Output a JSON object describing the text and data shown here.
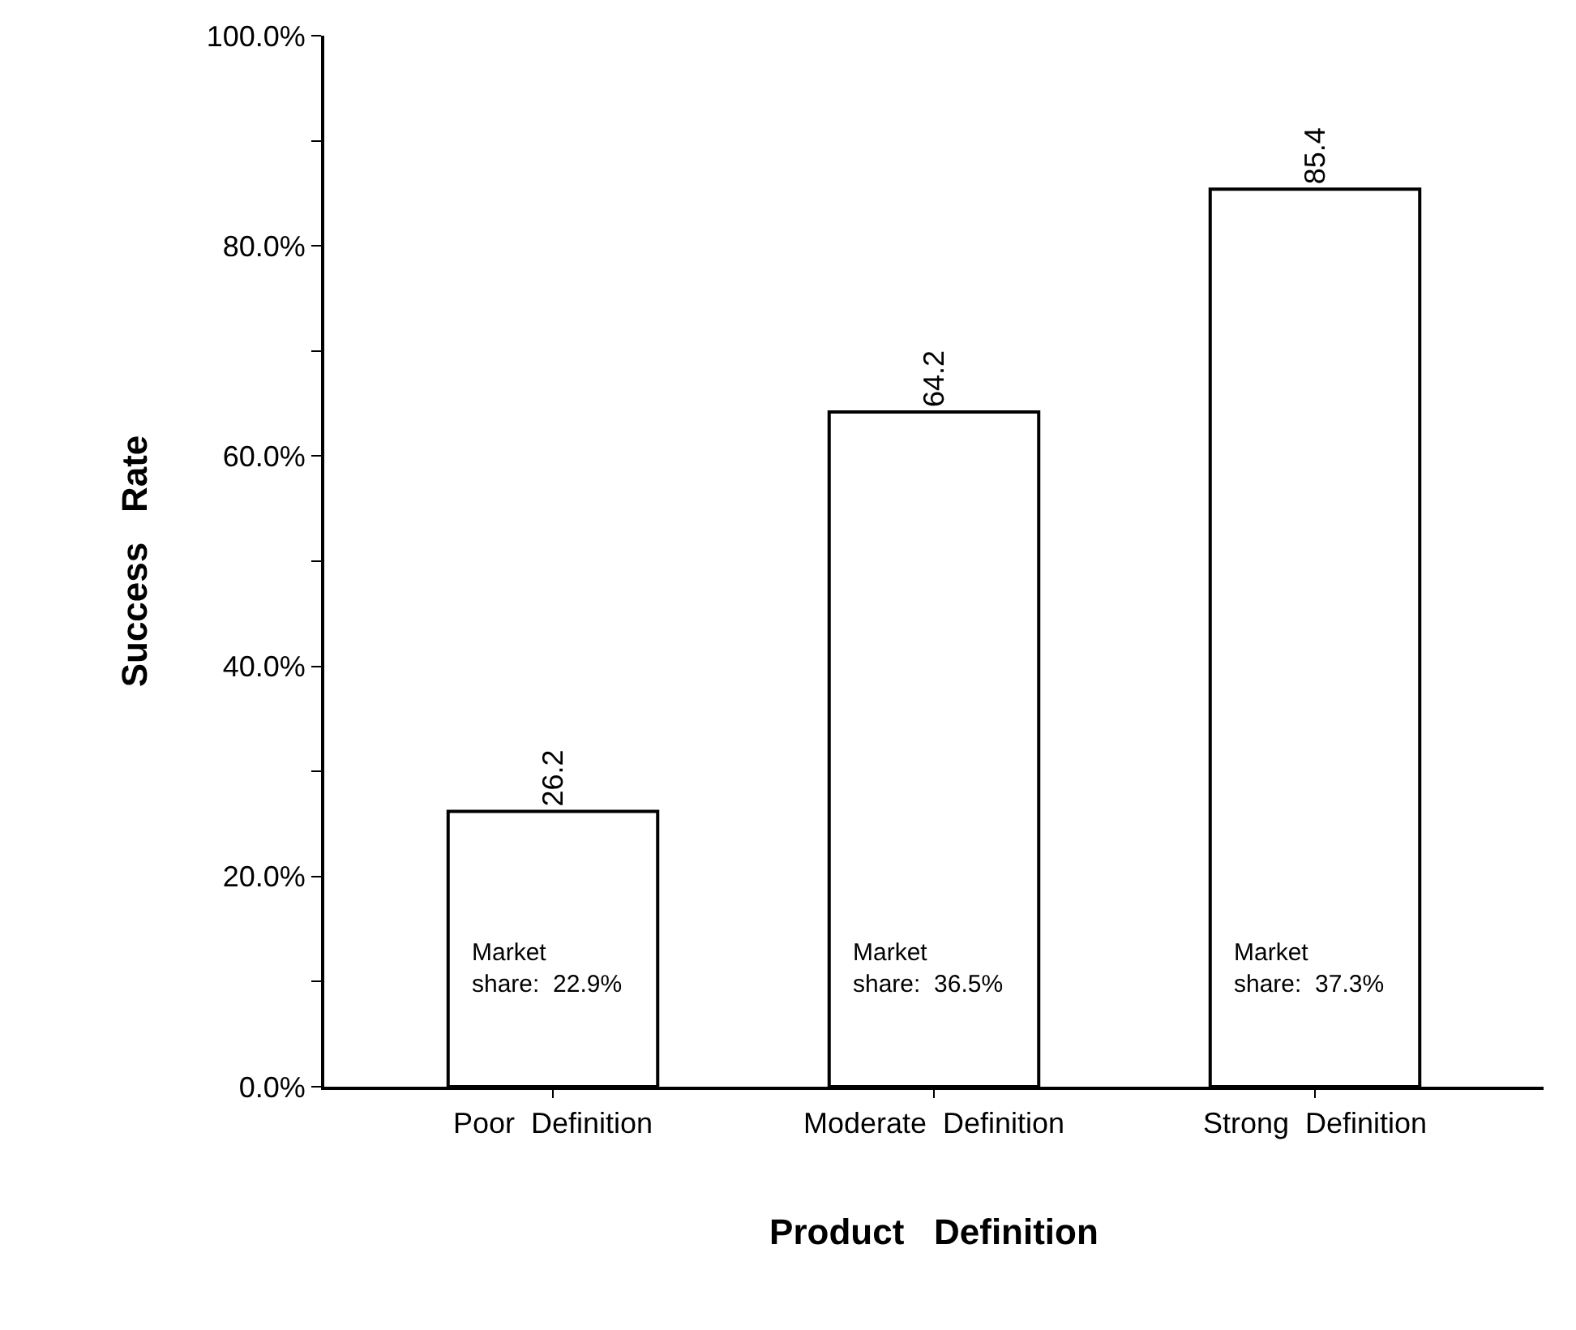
{
  "chart_data": {
    "type": "bar",
    "xlabel": "Product   Definition",
    "ylabel": "Success   Rate",
    "categories": [
      "Poor  Definition",
      "Moderate  Definition",
      "Strong  Definition"
    ],
    "values": [
      26.2,
      64.2,
      85.4
    ],
    "color": "#ffffff",
    "data_labels": true,
    "ylim": [
      0,
      100
    ],
    "yticks": [
      {
        "value": 0,
        "label": "0.0%"
      },
      {
        "value": 10,
        "label": null
      },
      {
        "value": 20,
        "label": "20.0%"
      },
      {
        "value": 30,
        "label": null
      },
      {
        "value": 40,
        "label": "40.0%"
      },
      {
        "value": 50,
        "label": null
      },
      {
        "value": 60,
        "label": "60.0%"
      },
      {
        "value": 70,
        "label": null
      },
      {
        "value": 80,
        "label": "80.0%"
      },
      {
        "value": 90,
        "label": null
      },
      {
        "value": 100,
        "label": "100.0%"
      }
    ],
    "annotations": [
      "Market\nshare:  22.9%",
      "Market\nshare:  36.5%",
      "Market\nshare:  37.3%"
    ]
  }
}
